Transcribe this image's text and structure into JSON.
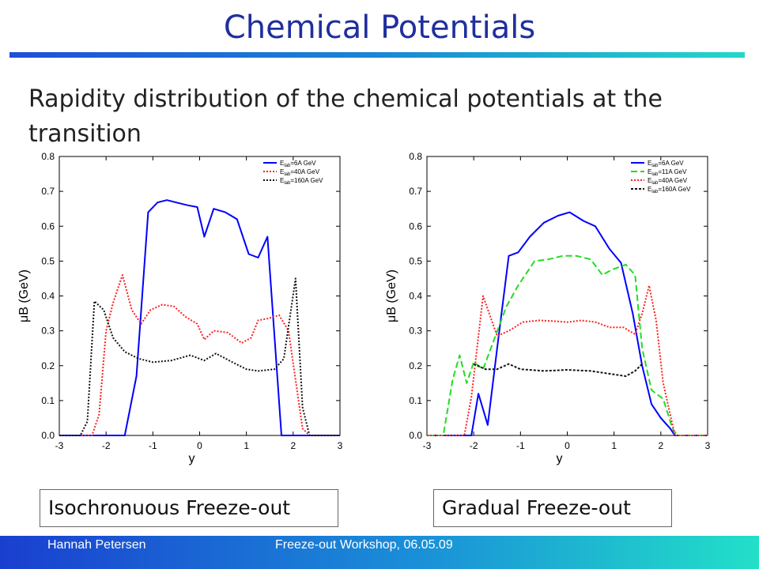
{
  "title": "Chemical Potentials",
  "subtitle": "Rapidity distribution of the chemical potentials at the transition",
  "captions": {
    "left": "Isochronuous Freeze-out",
    "right": "Gradual Freeze-out"
  },
  "footer": {
    "author": "Hannah Petersen",
    "event": "Freeze-out Workshop, 06.05.09"
  },
  "chart_data": [
    {
      "type": "line",
      "xlabel": "y",
      "ylabel": "μB (GeV)",
      "xlim": [
        -3,
        3
      ],
      "ylim": [
        0,
        0.8
      ],
      "xticks": [
        -3,
        -2,
        -1,
        0,
        1,
        2,
        3
      ],
      "yticks": [
        0.0,
        0.1,
        0.2,
        0.3,
        0.4,
        0.5,
        0.6,
        0.7,
        0.8
      ],
      "ytick_labels": [
        "0.0",
        "0.1",
        "0.2",
        "0.3",
        "0.4",
        "0.5",
        "0.6",
        "0.7",
        "0.8"
      ],
      "legend_position": "top-right",
      "series": [
        {
          "name": "Elab=6A GeV",
          "color": "#0000ff",
          "dash": "solid",
          "points": [
            [
              -3,
              0
            ],
            [
              -1.6,
              0
            ],
            [
              -1.35,
              0.17
            ],
            [
              -1.1,
              0.64
            ],
            [
              -0.9,
              0.668
            ],
            [
              -0.7,
              0.675
            ],
            [
              -0.5,
              0.668
            ],
            [
              -0.25,
              0.66
            ],
            [
              -0.05,
              0.655
            ],
            [
              0.1,
              0.57
            ],
            [
              0.3,
              0.65
            ],
            [
              0.55,
              0.64
            ],
            [
              0.8,
              0.62
            ],
            [
              1.05,
              0.52
            ],
            [
              1.25,
              0.51
            ],
            [
              1.45,
              0.57
            ],
            [
              1.75,
              0
            ],
            [
              3,
              0
            ]
          ]
        },
        {
          "name": "Elab=40A GeV",
          "color": "#ff2020",
          "dash": "2,2",
          "points": [
            [
              -3,
              0
            ],
            [
              -2.3,
              0
            ],
            [
              -2.15,
              0.06
            ],
            [
              -2.0,
              0.3
            ],
            [
              -1.85,
              0.38
            ],
            [
              -1.65,
              0.46
            ],
            [
              -1.45,
              0.36
            ],
            [
              -1.25,
              0.32
            ],
            [
              -1.05,
              0.36
            ],
            [
              -0.8,
              0.375
            ],
            [
              -0.55,
              0.37
            ],
            [
              -0.3,
              0.34
            ],
            [
              -0.05,
              0.32
            ],
            [
              0.1,
              0.275
            ],
            [
              0.3,
              0.3
            ],
            [
              0.6,
              0.295
            ],
            [
              0.9,
              0.265
            ],
            [
              1.1,
              0.28
            ],
            [
              1.25,
              0.33
            ],
            [
              1.45,
              0.335
            ],
            [
              1.7,
              0.345
            ],
            [
              1.9,
              0.3
            ],
            [
              2.2,
              0.02
            ],
            [
              2.35,
              0
            ],
            [
              3,
              0
            ]
          ]
        },
        {
          "name": "Elab=160A GeV",
          "color": "#111111",
          "dash": "2,2",
          "points": [
            [
              -3,
              0
            ],
            [
              -2.55,
              0
            ],
            [
              -2.4,
              0.04
            ],
            [
              -2.25,
              0.385
            ],
            [
              -2.05,
              0.36
            ],
            [
              -1.85,
              0.28
            ],
            [
              -1.6,
              0.24
            ],
            [
              -1.3,
              0.22
            ],
            [
              -1.0,
              0.21
            ],
            [
              -0.6,
              0.215
            ],
            [
              -0.2,
              0.23
            ],
            [
              0.1,
              0.215
            ],
            [
              0.35,
              0.235
            ],
            [
              0.7,
              0.21
            ],
            [
              1.0,
              0.19
            ],
            [
              1.25,
              0.185
            ],
            [
              1.6,
              0.19
            ],
            [
              1.8,
              0.22
            ],
            [
              2.05,
              0.45
            ],
            [
              2.2,
              0.08
            ],
            [
              2.35,
              0
            ],
            [
              3,
              0
            ]
          ]
        }
      ]
    },
    {
      "type": "line",
      "xlabel": "y",
      "ylabel": "μB (GeV)",
      "xlim": [
        -3,
        3
      ],
      "ylim": [
        0,
        0.8
      ],
      "xticks": [
        -3,
        -2,
        -1,
        0,
        1,
        2,
        3
      ],
      "yticks": [
        0.0,
        0.1,
        0.2,
        0.3,
        0.4,
        0.5,
        0.6,
        0.7,
        0.8
      ],
      "ytick_labels": [
        "0.0",
        "0.1",
        "0.2",
        "0.3",
        "0.4",
        "0.5",
        "0.6",
        "0.7",
        "0.8"
      ],
      "legend_position": "top-right",
      "series": [
        {
          "name": "Elab=6A GeV",
          "color": "#0000ff",
          "dash": "solid",
          "points": [
            [
              -3,
              0
            ],
            [
              -2.05,
              0
            ],
            [
              -1.9,
              0.12
            ],
            [
              -1.7,
              0.03
            ],
            [
              -1.5,
              0.25
            ],
            [
              -1.25,
              0.515
            ],
            [
              -1.05,
              0.525
            ],
            [
              -0.8,
              0.57
            ],
            [
              -0.5,
              0.61
            ],
            [
              -0.2,
              0.63
            ],
            [
              0.05,
              0.64
            ],
            [
              0.35,
              0.615
            ],
            [
              0.6,
              0.6
            ],
            [
              0.9,
              0.535
            ],
            [
              1.15,
              0.495
            ],
            [
              1.4,
              0.35
            ],
            [
              1.6,
              0.2
            ],
            [
              1.8,
              0.09
            ],
            [
              2.0,
              0.05
            ],
            [
              2.2,
              0.02
            ],
            [
              2.3,
              0
            ],
            [
              3,
              0
            ]
          ]
        },
        {
          "name": "Elab=11A GeV",
          "color": "#22dd22",
          "dash": "8,4",
          "points": [
            [
              -3,
              0
            ],
            [
              -2.65,
              0
            ],
            [
              -2.45,
              0.16
            ],
            [
              -2.3,
              0.23
            ],
            [
              -2.15,
              0.15
            ],
            [
              -2.0,
              0.21
            ],
            [
              -1.8,
              0.19
            ],
            [
              -1.55,
              0.28
            ],
            [
              -1.3,
              0.37
            ],
            [
              -1.05,
              0.43
            ],
            [
              -0.7,
              0.5
            ],
            [
              -0.4,
              0.505
            ],
            [
              -0.1,
              0.515
            ],
            [
              0.2,
              0.515
            ],
            [
              0.5,
              0.505
            ],
            [
              0.75,
              0.46
            ],
            [
              0.95,
              0.475
            ],
            [
              1.25,
              0.49
            ],
            [
              1.45,
              0.46
            ],
            [
              1.6,
              0.25
            ],
            [
              1.8,
              0.13
            ],
            [
              2.05,
              0.105
            ],
            [
              2.25,
              0.02
            ],
            [
              2.35,
              0
            ],
            [
              3,
              0
            ]
          ]
        },
        {
          "name": "Elab=40A GeV",
          "color": "#ff2020",
          "dash": "2,2",
          "points": [
            [
              -3,
              0
            ],
            [
              -2.2,
              0
            ],
            [
              -2.05,
              0.11
            ],
            [
              -1.8,
              0.4
            ],
            [
              -1.5,
              0.285
            ],
            [
              -1.25,
              0.3
            ],
            [
              -0.95,
              0.325
            ],
            [
              -0.6,
              0.33
            ],
            [
              -0.3,
              0.328
            ],
            [
              0.0,
              0.325
            ],
            [
              0.3,
              0.33
            ],
            [
              0.6,
              0.325
            ],
            [
              0.9,
              0.31
            ],
            [
              1.2,
              0.31
            ],
            [
              1.45,
              0.29
            ],
            [
              1.6,
              0.35
            ],
            [
              1.75,
              0.43
            ],
            [
              1.9,
              0.33
            ],
            [
              2.05,
              0.15
            ],
            [
              2.2,
              0.06
            ],
            [
              2.3,
              0
            ],
            [
              3,
              0
            ]
          ]
        },
        {
          "name": "Elab=160A GeV",
          "color": "#111111",
          "dash": "3,2",
          "points": [
            [
              -2.0,
              0.205
            ],
            [
              -1.75,
              0.19
            ],
            [
              -1.5,
              0.19
            ],
            [
              -1.25,
              0.205
            ],
            [
              -1.0,
              0.19
            ],
            [
              -0.5,
              0.185
            ],
            [
              0.0,
              0.188
            ],
            [
              0.5,
              0.185
            ],
            [
              1.0,
              0.175
            ],
            [
              1.25,
              0.17
            ],
            [
              1.45,
              0.185
            ],
            [
              1.6,
              0.205
            ]
          ]
        }
      ]
    }
  ]
}
